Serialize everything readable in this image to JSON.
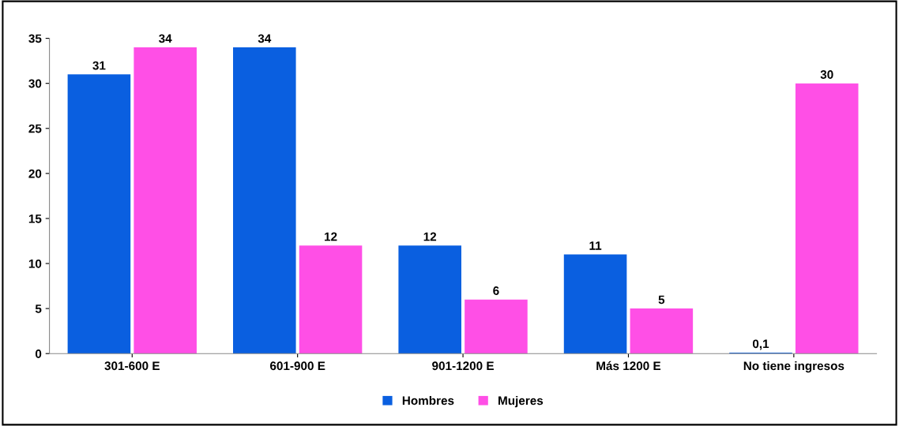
{
  "chart_data": {
    "type": "bar",
    "categories": [
      "301-600 E",
      "601-900 E",
      "901-1200 E",
      "Más 1200 E",
      "No tiene ingresos"
    ],
    "series": [
      {
        "name": "Hombres",
        "color": "#0a5fe0",
        "values": [
          31,
          34,
          12,
          11,
          0.1
        ],
        "value_labels": [
          "31",
          "34",
          "12",
          "11",
          "0,1"
        ]
      },
      {
        "name": "Mujeres",
        "color": "#ff4fe6",
        "values": [
          34,
          12,
          6,
          5,
          30
        ],
        "value_labels": [
          "34",
          "12",
          "6",
          "5",
          "30"
        ]
      }
    ],
    "ylim": [
      0,
      35
    ],
    "yticks": [
      0,
      5,
      10,
      15,
      20,
      25,
      30,
      35
    ],
    "grid": false,
    "legend": "bottom"
  }
}
